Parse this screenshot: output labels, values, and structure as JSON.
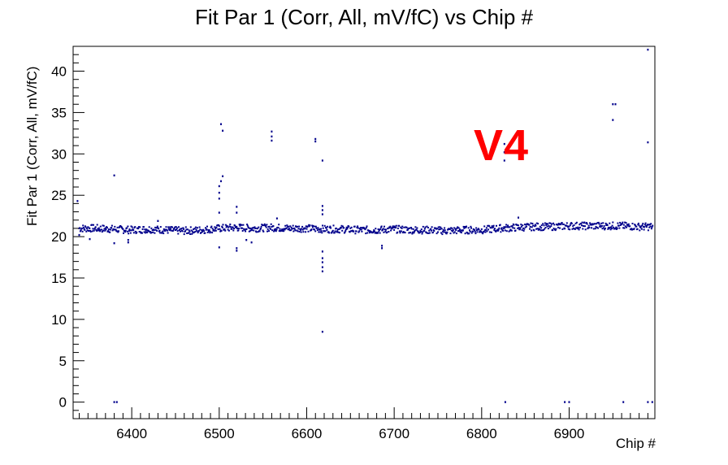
{
  "chart_data": {
    "type": "scatter",
    "title": "Fit Par 1 (Corr, All, mV/fC) vs Chip #",
    "xlabel": "Chip #",
    "ylabel": "Fit Par 1 (Corr, All, mV/fC)",
    "xlim": [
      6333,
      6998
    ],
    "ylim": [
      -2,
      43
    ],
    "x_ticks": [
      6400,
      6500,
      6600,
      6700,
      6800,
      6900
    ],
    "y_ticks": [
      0,
      5,
      10,
      15,
      20,
      25,
      30,
      35,
      40
    ],
    "grid": false,
    "marker_color": "#00008b",
    "annotation": {
      "text": "V4",
      "color": "#ff0000"
    },
    "band": [
      {
        "x": 6340,
        "y": 21.0
      },
      {
        "x": 6360,
        "y": 21.0
      },
      {
        "x": 6380,
        "y": 20.9
      },
      {
        "x": 6400,
        "y": 20.8
      },
      {
        "x": 6420,
        "y": 20.9
      },
      {
        "x": 6440,
        "y": 20.8
      },
      {
        "x": 6460,
        "y": 20.7
      },
      {
        "x": 6480,
        "y": 20.8
      },
      {
        "x": 6500,
        "y": 21.0
      },
      {
        "x": 6520,
        "y": 21.1
      },
      {
        "x": 6540,
        "y": 21.0
      },
      {
        "x": 6560,
        "y": 21.1
      },
      {
        "x": 6580,
        "y": 21.0
      },
      {
        "x": 6600,
        "y": 21.0
      },
      {
        "x": 6620,
        "y": 20.9
      },
      {
        "x": 6640,
        "y": 20.9
      },
      {
        "x": 6660,
        "y": 20.8
      },
      {
        "x": 6680,
        "y": 20.8
      },
      {
        "x": 6700,
        "y": 20.9
      },
      {
        "x": 6720,
        "y": 20.8
      },
      {
        "x": 6740,
        "y": 20.8
      },
      {
        "x": 6760,
        "y": 20.7
      },
      {
        "x": 6780,
        "y": 20.8
      },
      {
        "x": 6800,
        "y": 20.8
      },
      {
        "x": 6820,
        "y": 21.0
      },
      {
        "x": 6840,
        "y": 21.1
      },
      {
        "x": 6860,
        "y": 21.2
      },
      {
        "x": 6880,
        "y": 21.2
      },
      {
        "x": 6900,
        "y": 21.3
      },
      {
        "x": 6920,
        "y": 21.3
      },
      {
        "x": 6940,
        "y": 21.3
      },
      {
        "x": 6960,
        "y": 21.3
      },
      {
        "x": 6980,
        "y": 21.2
      },
      {
        "x": 6996,
        "y": 21.2
      }
    ],
    "outliers": [
      {
        "x": 6338,
        "y": 24.3
      },
      {
        "x": 6340,
        "y": 20.2
      },
      {
        "x": 6352,
        "y": 19.7
      },
      {
        "x": 6380,
        "y": 27.4
      },
      {
        "x": 6380,
        "y": 19.2
      },
      {
        "x": 6380,
        "y": 0.0
      },
      {
        "x": 6383,
        "y": 0.0
      },
      {
        "x": 6396,
        "y": 19.6
      },
      {
        "x": 6396,
        "y": 19.3
      },
      {
        "x": 6430,
        "y": 21.9
      },
      {
        "x": 6500,
        "y": 26.1
      },
      {
        "x": 6500,
        "y": 25.3
      },
      {
        "x": 6500,
        "y": 24.6
      },
      {
        "x": 6500,
        "y": 22.9
      },
      {
        "x": 6500,
        "y": 18.7
      },
      {
        "x": 6502,
        "y": 33.6
      },
      {
        "x": 6502,
        "y": 26.7
      },
      {
        "x": 6504,
        "y": 32.8
      },
      {
        "x": 6504,
        "y": 27.3
      },
      {
        "x": 6520,
        "y": 23.6
      },
      {
        "x": 6520,
        "y": 22.9
      },
      {
        "x": 6520,
        "y": 18.6
      },
      {
        "x": 6520,
        "y": 18.3
      },
      {
        "x": 6531,
        "y": 19.6
      },
      {
        "x": 6537,
        "y": 19.3
      },
      {
        "x": 6560,
        "y": 32.7
      },
      {
        "x": 6560,
        "y": 32.1
      },
      {
        "x": 6560,
        "y": 31.6
      },
      {
        "x": 6566,
        "y": 22.2
      },
      {
        "x": 6610,
        "y": 31.8
      },
      {
        "x": 6610,
        "y": 31.5
      },
      {
        "x": 6618,
        "y": 29.2
      },
      {
        "x": 6618,
        "y": 23.7
      },
      {
        "x": 6618,
        "y": 23.2
      },
      {
        "x": 6618,
        "y": 22.7
      },
      {
        "x": 6618,
        "y": 18.2
      },
      {
        "x": 6618,
        "y": 17.4
      },
      {
        "x": 6618,
        "y": 16.9
      },
      {
        "x": 6618,
        "y": 16.3
      },
      {
        "x": 6618,
        "y": 15.8
      },
      {
        "x": 6618,
        "y": 8.5
      },
      {
        "x": 6686,
        "y": 18.9
      },
      {
        "x": 6686,
        "y": 18.6
      },
      {
        "x": 6826,
        "y": 31.2
      },
      {
        "x": 6826,
        "y": 30.2
      },
      {
        "x": 6826,
        "y": 29.2
      },
      {
        "x": 6827,
        "y": 0.0
      },
      {
        "x": 6842,
        "y": 22.3
      },
      {
        "x": 6895,
        "y": 0.0
      },
      {
        "x": 6900,
        "y": 0.0
      },
      {
        "x": 6950,
        "y": 36.0
      },
      {
        "x": 6953,
        "y": 36.0
      },
      {
        "x": 6950,
        "y": 34.1
      },
      {
        "x": 6962,
        "y": 0.0
      },
      {
        "x": 6990,
        "y": 42.6
      },
      {
        "x": 6990,
        "y": 31.4
      },
      {
        "x": 6990,
        "y": 0.0
      },
      {
        "x": 6995,
        "y": 0.0
      }
    ]
  }
}
